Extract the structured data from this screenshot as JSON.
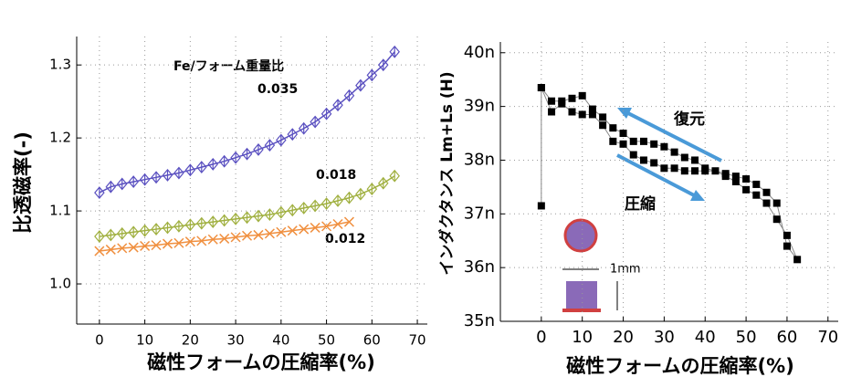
{
  "chart_data": [
    {
      "type": "line",
      "xlabel": "磁性フォームの圧縮率(%)",
      "ylabel": "比透磁率(-)",
      "annotations": [
        "Fe/フォーム重量比"
      ],
      "xlim": [
        -5,
        72.2
      ],
      "ylim": [
        0.945,
        1.339
      ],
      "xticks": [
        0,
        10,
        20,
        30,
        40,
        50,
        60,
        70
      ],
      "yticks": [
        {
          "value": 1,
          "label": "1.0"
        },
        {
          "value": 1.1,
          "label": "1.1"
        },
        {
          "value": 1.2,
          "label": "1.2"
        },
        {
          "value": 1.3,
          "label": "1.3"
        }
      ],
      "grid": true,
      "series": [
        {
          "name": "0.035",
          "color": "#5a50c0",
          "x": [
            0,
            2.5,
            5,
            7.5,
            10,
            12.5,
            15,
            17.5,
            20,
            22.5,
            25,
            27.5,
            30,
            32.5,
            35,
            37.5,
            40,
            42.5,
            45,
            47.5,
            50,
            52.5,
            55,
            57.5,
            60,
            62.5,
            65
          ],
          "values": [
            1.125,
            1.133,
            1.137,
            1.14,
            1.143,
            1.146,
            1.149,
            1.152,
            1.156,
            1.16,
            1.164,
            1.168,
            1.173,
            1.178,
            1.184,
            1.19,
            1.197,
            1.205,
            1.213,
            1.222,
            1.233,
            1.245,
            1.258,
            1.272,
            1.286,
            1.3,
            1.318
          ]
        },
        {
          "name": "0.018",
          "color": "#a0b040",
          "x": [
            0,
            2.5,
            5,
            7.5,
            10,
            12.5,
            15,
            17.5,
            20,
            22.5,
            25,
            27.5,
            30,
            32.5,
            35,
            37.5,
            40,
            42.5,
            45,
            47.5,
            50,
            52.5,
            55,
            57.5,
            60,
            62.5,
            65
          ],
          "values": [
            1.065,
            1.067,
            1.069,
            1.071,
            1.073,
            1.075,
            1.077,
            1.079,
            1.081,
            1.083,
            1.085,
            1.087,
            1.089,
            1.091,
            1.093,
            1.095,
            1.098,
            1.101,
            1.104,
            1.107,
            1.11,
            1.114,
            1.118,
            1.123,
            1.13,
            1.138,
            1.148
          ]
        },
        {
          "name": "0.012",
          "color": "#f09040",
          "x": [
            0,
            2.5,
            5,
            7.5,
            10,
            12.5,
            15,
            17.5,
            20,
            22.5,
            25,
            27.5,
            30,
            32.5,
            35,
            37.5,
            40,
            42.5,
            45,
            47.5,
            50,
            52.5,
            55
          ],
          "values": [
            1.045,
            1.047,
            1.049,
            1.05,
            1.052,
            1.053,
            1.055,
            1.056,
            1.058,
            1.059,
            1.061,
            1.062,
            1.064,
            1.066,
            1.067,
            1.069,
            1.071,
            1.073,
            1.075,
            1.077,
            1.079,
            1.082,
            1.085
          ]
        }
      ]
    },
    {
      "type": "line",
      "xlabel": "磁性フォームの圧縮率(%)",
      "ylabel": "インダクタンス Lm+Ls (H)",
      "annotations": [
        "復元",
        "圧縮",
        "1mm"
      ],
      "xlim": [
        -10,
        72.5
      ],
      "ylim": [
        35,
        40.2
      ],
      "xticks": [
        0,
        10,
        20,
        30,
        40,
        50,
        60,
        70
      ],
      "yticks": [
        {
          "value": 35,
          "label": "35n"
        },
        {
          "value": 36,
          "label": "36n"
        },
        {
          "value": 37,
          "label": "37n"
        },
        {
          "value": 38,
          "label": "38n"
        },
        {
          "value": 39,
          "label": "39n"
        },
        {
          "value": 40,
          "label": "40n"
        }
      ],
      "grid": true,
      "series": [
        {
          "color": "#000000",
          "x": [
            0,
            0,
            2.5,
            5,
            7.5,
            10,
            12.5,
            15,
            17.5,
            20,
            22.5,
            25,
            27.5,
            30,
            32.5,
            35,
            37.5,
            40,
            42.5,
            45,
            47.5,
            50,
            52.5,
            55,
            57.5,
            60,
            62.5,
            60,
            57.5,
            55,
            52.5,
            50,
            47.5,
            45,
            40,
            37.5,
            35,
            32.5,
            30,
            27.5,
            25,
            22.5,
            20,
            17.5,
            15,
            12.5,
            10,
            7.5,
            5,
            2.5,
            0
          ],
          "values": [
            37.15,
            39.35,
            38.9,
            39.05,
            38.9,
            38.85,
            38.85,
            38.65,
            38.35,
            38.3,
            38.1,
            38.0,
            37.95,
            37.85,
            37.85,
            37.8,
            37.8,
            37.8,
            37.8,
            37.7,
            37.6,
            37.45,
            37.35,
            37.2,
            36.9,
            36.6,
            36.15,
            36.4,
            37.2,
            37.4,
            37.55,
            37.65,
            37.7,
            37.75,
            37.85,
            38.0,
            38.05,
            38.15,
            38.25,
            38.3,
            38.35,
            38.35,
            38.5,
            38.6,
            38.8,
            38.95,
            39.2,
            39.15,
            39.1,
            39.1,
            39.35
          ]
        }
      ]
    }
  ]
}
